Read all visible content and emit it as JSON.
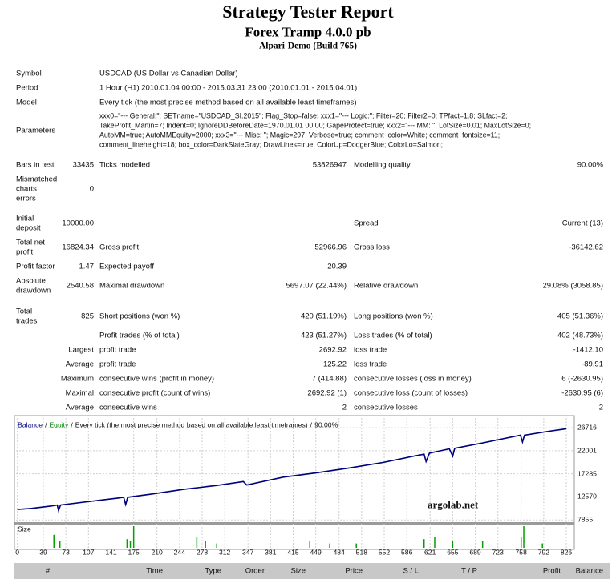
{
  "header": {
    "title": "Strategy Tester Report",
    "subtitle": "Forex Tramp 4.0.0 pb",
    "server": "Alpari-Demo (Build 765)"
  },
  "summary": {
    "rows": [
      {
        "label": [
          "Symbol"
        ],
        "k2": "USDCAD (US Dollar vs Canadian Dollar)"
      },
      {
        "label": [
          "Period"
        ],
        "k2": "1 Hour (H1) 2010.01.04 00:00 - 2015.03.31 23:00 (2010.01.01 - 2015.04.01)"
      },
      {
        "label": [
          "Model"
        ],
        "k2": "Every tick (the most precise method based on all available least timeframes)"
      },
      {
        "label": [
          "Parameters"
        ],
        "lines": [
          "xxx0=\"--- General:\"; SETname=\"USDCAD_SI.2015\"; Flag_Stop=false; xxx1=\"--- Logic:\"; Filter=20; Filter2=0; TPfact=1.8; SLfact=2;",
          "TakeProfit_Martin=7; Indent=0; IgnoreDDBeforeDate=1970.01.01 00:00; GapeProtect=true; xxx2=\"--- MM: \"; LotSize=0.01; MaxLotSize=0;",
          "AutoMM=true; AutoMMEquity=2000; xxx3=\"--- Misc: \"; Magic=297; Verbose=true; comment_color=White; comment_fontsize=11;",
          "comment_lineheight=18; box_color=DarkSlateGray; DrawLines=true; ColorUp=DodgerBlue; ColorLo=Salmon;"
        ]
      },
      {
        "label": [
          "Bars in test"
        ],
        "v1": "33435",
        "k2": "Ticks modelled",
        "v2": "53826947",
        "k3": "Modelling quality",
        "v3": "90.00%"
      },
      {
        "label": [
          "Mismatched",
          "charts",
          "errors"
        ],
        "v1": "0"
      },
      {
        "label": [
          "Initial",
          "deposit"
        ],
        "v1": "10000.00",
        "k3": "Spread",
        "v3": "Current (13)"
      },
      {
        "label": [
          "Total net",
          "profit"
        ],
        "v1": "16824.34",
        "k2": "Gross profit",
        "v2": "52966.96",
        "k3": "Gross loss",
        "v3": "-36142.62"
      },
      {
        "label": [
          "Profit factor"
        ],
        "v1": "1.47",
        "k2": "Expected payoff",
        "v2": "20.39"
      },
      {
        "label": [
          "Absolute",
          "drawdown"
        ],
        "v1": "2540.58",
        "k2": "Maximal drawdown",
        "v2": "5697.07 (22.44%)",
        "k3": "Relative drawdown",
        "v3": "29.08% (3058.85)"
      },
      {
        "label": [
          "Total",
          "trades"
        ],
        "v1": "825",
        "k2": "Short positions (won %)",
        "v2": "420 (51.19%)",
        "k3": "Long positions (won %)",
        "v3": "405 (51.36%)"
      },
      {
        "k2": "Profit trades (% of total)",
        "v2": "423 (51.27%)",
        "k3": "Loss trades (% of total)",
        "v3": "402 (48.73%)"
      },
      {
        "v1": "Largest",
        "k2": "profit trade",
        "v2": "2692.92",
        "k3": "loss trade",
        "v3": "-1412.10"
      },
      {
        "v1": "Average",
        "k2": "profit trade",
        "v2": "125.22",
        "k3": "loss trade",
        "v3": "-89.91"
      },
      {
        "v1": "Maximum",
        "k2": "consecutive wins (profit in money)",
        "v2": "7 (414.88)",
        "k3": "consecutive losses (loss in money)",
        "v3": "6 (-2630.95)"
      },
      {
        "v1": "Maximal",
        "k2": "consecutive profit (count of wins)",
        "v2": "2692.92 (1)",
        "k3": "consecutive loss (count of losses)",
        "v3": "-2630.95 (6)"
      },
      {
        "v1": "Average",
        "k2": "consecutive wins",
        "v2": "2",
        "k3": "consecutive losses",
        "v3": "2"
      }
    ]
  },
  "chart_data": {
    "type": "line",
    "legend_separator": "/",
    "model_note": "Every tick (the most precise method based on all available least timeframes)",
    "quality_note": "90.00%",
    "annotation": "argolab.net",
    "x": [
      0,
      20,
      50,
      60,
      62,
      65,
      100,
      150,
      160,
      163,
      166,
      200,
      250,
      300,
      340,
      345,
      400,
      450,
      500,
      550,
      600,
      612,
      615,
      620,
      650,
      655,
      658,
      700,
      750,
      757,
      760,
      763,
      800,
      826
    ],
    "series": [
      {
        "name": "Balance",
        "color": "#000080",
        "values": [
          10000,
          10200,
          10700,
          10900,
          9800,
          10900,
          11500,
          12300,
          12500,
          11000,
          12500,
          13100,
          14100,
          14900,
          15700,
          15000,
          16600,
          17500,
          18500,
          19600,
          21000,
          21300,
          19800,
          21500,
          22400,
          20900,
          22500,
          23600,
          25000,
          25200,
          23800,
          25200,
          26000,
          26500
        ]
      },
      {
        "name": "Equity",
        "color": "#008000",
        "values": [
          10000,
          10200,
          10700,
          10900,
          9800,
          10900,
          11500,
          12300,
          12500,
          11000,
          12500,
          13100,
          14100,
          14900,
          15700,
          15000,
          16600,
          17500,
          18500,
          19600,
          21000,
          21300,
          19800,
          21500,
          22400,
          20900,
          22500,
          23600,
          25000,
          25200,
          23800,
          25200,
          26000,
          26500
        ]
      }
    ],
    "xlim": [
      -2,
      838
    ],
    "ylim": [
      7400,
      28700
    ],
    "xticks": [
      0,
      39,
      73,
      107,
      141,
      175,
      210,
      244,
      278,
      312,
      347,
      381,
      415,
      449,
      484,
      518,
      552,
      586,
      621,
      655,
      689,
      723,
      758,
      792,
      826
    ],
    "yticks": [
      7855,
      12570,
      17285,
      22001,
      26716
    ],
    "grid": true,
    "size_panel": {
      "name": "Size",
      "color": "#00a000",
      "ylim": [
        0,
        1
      ],
      "x": [
        55,
        64,
        165,
        170,
        175,
        270,
        283,
        300,
        440,
        470,
        510,
        612,
        628,
        655,
        700,
        758,
        762,
        790
      ],
      "values": [
        0.6,
        0.3,
        0.4,
        0.3,
        1,
        0.5,
        0.3,
        0.2,
        0.3,
        0.2,
        0.2,
        0.4,
        0.5,
        0.3,
        0.3,
        0.5,
        1,
        0.2
      ]
    }
  },
  "trades_table": {
    "columns": [
      "#",
      "Time",
      "Type",
      "Order",
      "Size",
      "Price",
      "S / L",
      "T / P",
      "Profit",
      "Balance"
    ]
  }
}
